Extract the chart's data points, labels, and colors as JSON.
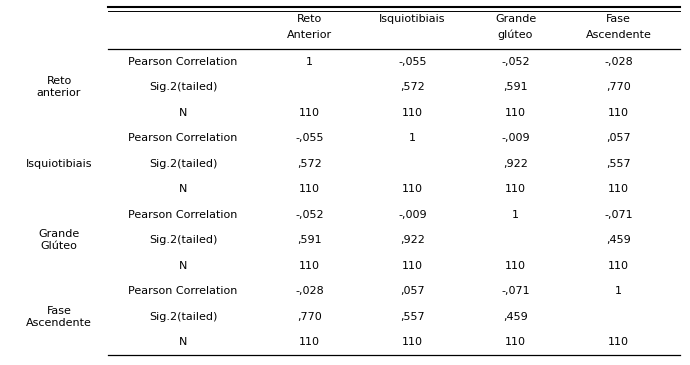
{
  "row_groups": [
    {
      "label": "Reto\nanterior",
      "rows": [
        {
          "type": "Pearson Correlation",
          "values": [
            "1",
            "-,055",
            "-,052",
            "-,028"
          ]
        },
        {
          "type": "Sig.2(tailed)",
          "values": [
            "",
            ",572",
            ",591",
            ",770"
          ]
        },
        {
          "type": "N",
          "values": [
            "110",
            "110",
            "110",
            "110"
          ]
        }
      ]
    },
    {
      "label": "Isquiotibiais",
      "rows": [
        {
          "type": "Pearson Correlation",
          "values": [
            "-,055",
            "1",
            "-,009",
            ",057"
          ]
        },
        {
          "type": "Sig.2(tailed)",
          "values": [
            ",572",
            "",
            ",922",
            ",557"
          ]
        },
        {
          "type": "N",
          "values": [
            "110",
            "110",
            "110",
            "110"
          ]
        }
      ]
    },
    {
      "label": "Grande\nGlúteo",
      "rows": [
        {
          "type": "Pearson Correlation",
          "values": [
            "-,052",
            "-,009",
            "1",
            "-,071"
          ]
        },
        {
          "type": "Sig.2(tailed)",
          "values": [
            ",591",
            ",922",
            "",
            ",459"
          ]
        },
        {
          "type": "N",
          "values": [
            "110",
            "110",
            "110",
            "110"
          ]
        }
      ]
    },
    {
      "label": "Fase\nAscendente",
      "rows": [
        {
          "type": "Pearson Correlation",
          "values": [
            "-,028",
            ",057",
            "-,071",
            "1"
          ]
        },
        {
          "type": "Sig.2(tailed)",
          "values": [
            ",770",
            ",557",
            ",459",
            ""
          ]
        },
        {
          "type": "N",
          "values": [
            "110",
            "110",
            "110",
            "110"
          ]
        }
      ]
    }
  ],
  "col_headers_top": [
    "Reto",
    "Isquiotibiais",
    "Grande",
    "Fase"
  ],
  "col_headers_bot": [
    "Anterior",
    "",
    "glúteo",
    "Ascendente"
  ],
  "bg_color": "#ffffff",
  "text_color": "#000000",
  "line_color": "#000000",
  "font_size": 8.0
}
